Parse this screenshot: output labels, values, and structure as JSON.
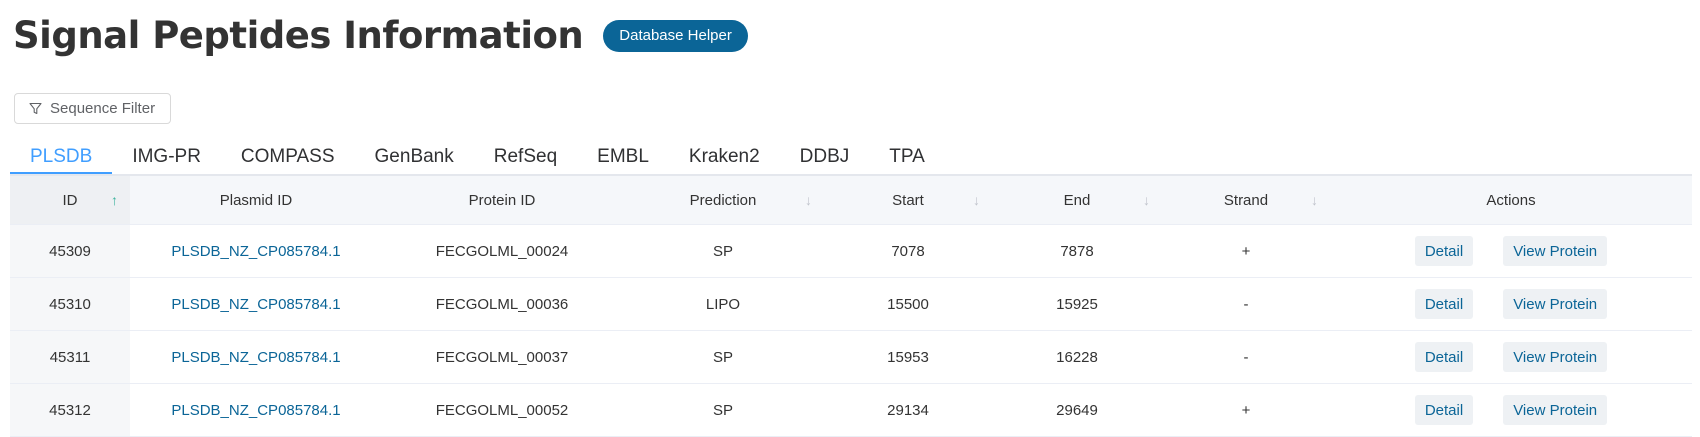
{
  "page": {
    "title": "Signal Peptides Information"
  },
  "header": {
    "helper_label": "Database Helper"
  },
  "filter": {
    "label": "Sequence Filter"
  },
  "tabs": [
    "PLSDB",
    "IMG-PR",
    "COMPASS",
    "GenBank",
    "RefSeq",
    "EMBL",
    "Kraken2",
    "DDBJ",
    "TPA"
  ],
  "active_tab": "PLSDB",
  "table": {
    "headers": {
      "id": "ID",
      "plasmid_id": "Plasmid ID",
      "protein_id": "Protein ID",
      "prediction": "Prediction",
      "start": "Start",
      "end": "End",
      "strand": "Strand",
      "actions": "Actions"
    },
    "detail_label": "Detail",
    "view_label": "View Protein",
    "rows": [
      {
        "id": "45309",
        "plasmid_id": "PLSDB_NZ_CP085784.1",
        "protein_id": "FECGOLML_00024",
        "prediction": "SP",
        "start": "7078",
        "end": "7878",
        "strand": "+"
      },
      {
        "id": "45310",
        "plasmid_id": "PLSDB_NZ_CP085784.1",
        "protein_id": "FECGOLML_00036",
        "prediction": "LIPO",
        "start": "15500",
        "end": "15925",
        "strand": "-"
      },
      {
        "id": "45311",
        "plasmid_id": "PLSDB_NZ_CP085784.1",
        "protein_id": "FECGOLML_00037",
        "prediction": "SP",
        "start": "15953",
        "end": "16228",
        "strand": "-"
      },
      {
        "id": "45312",
        "plasmid_id": "PLSDB_NZ_CP085784.1",
        "protein_id": "FECGOLML_00052",
        "prediction": "SP",
        "start": "29134",
        "end": "29649",
        "strand": "+"
      }
    ]
  },
  "colors": {
    "primary": "#0b6597",
    "tab_active": "#409eff",
    "sort_active": "#3db39e"
  },
  "icons": {
    "filter": "filter-icon",
    "sort": "sort-arrow-icon"
  }
}
